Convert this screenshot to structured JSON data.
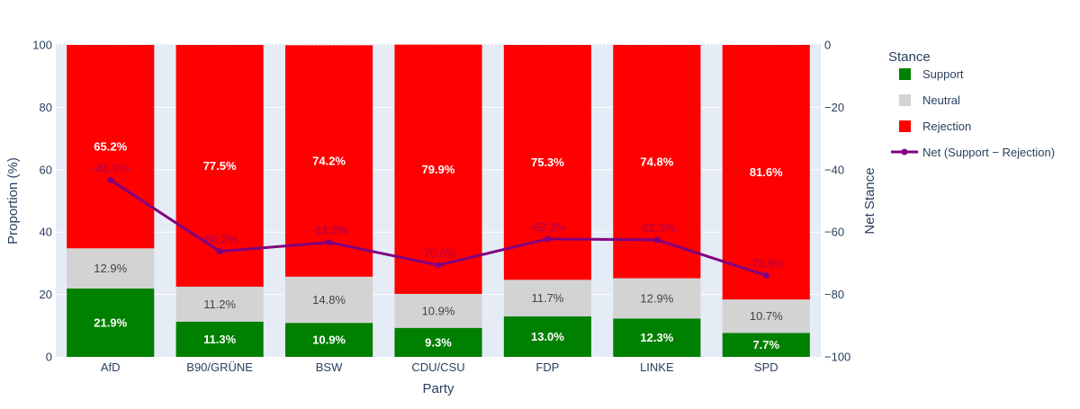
{
  "chart_data": {
    "type": "bar",
    "stacked": true,
    "categories": [
      "AfD",
      "B90/GRÜNE",
      "BSW",
      "CDU/CSU",
      "FDP",
      "LINKE",
      "SPD"
    ],
    "series": [
      {
        "name": "Support",
        "values": [
          21.9,
          11.3,
          10.9,
          9.3,
          13.0,
          12.3,
          7.7
        ],
        "color": "#008000",
        "label_color": "#ffffff",
        "label_bold": true
      },
      {
        "name": "Neutral",
        "values": [
          12.9,
          11.2,
          14.8,
          10.9,
          11.7,
          12.9,
          10.7
        ],
        "color": "#d3d3d3",
        "label_color": "#444444",
        "label_bold": false
      },
      {
        "name": "Rejection",
        "values": [
          65.2,
          77.5,
          74.2,
          79.9,
          75.3,
          74.8,
          81.6
        ],
        "color": "#ff0000",
        "label_color": "#ffffff",
        "label_bold": true
      }
    ],
    "line_series": {
      "name": "Net (Support − Rejection)",
      "values": [
        -43.3,
        -66.2,
        -63.3,
        -70.6,
        -62.2,
        -62.5,
        -73.9
      ],
      "color": "#800080",
      "axis": "y2"
    },
    "xlabel": "Party",
    "ylabel": "Proportion (%)",
    "y2label": "Net Stance",
    "ylim": [
      0,
      100
    ],
    "y2lim": [
      -100,
      0
    ],
    "yticks": [
      0,
      20,
      40,
      60,
      80,
      100
    ],
    "y2ticks": [
      0,
      -20,
      -40,
      -60,
      -80,
      -100
    ],
    "legend_title": "Stance",
    "legend_position": "right",
    "grid": true
  }
}
